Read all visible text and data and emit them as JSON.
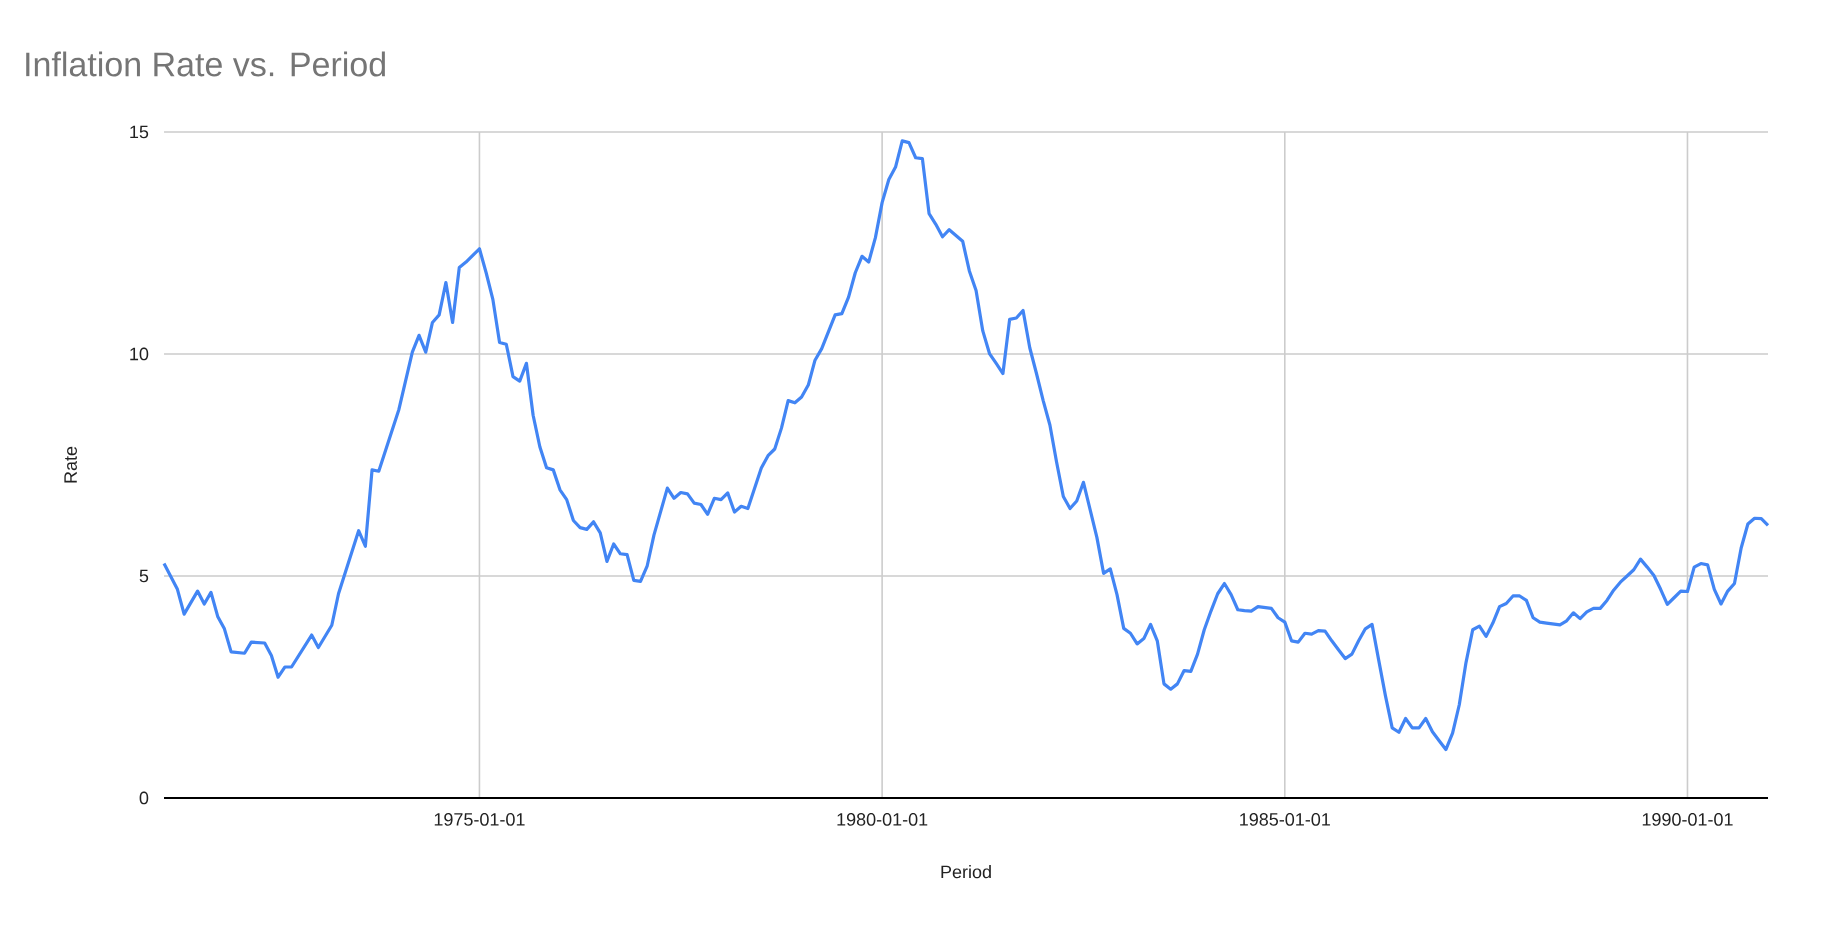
{
  "chart_data": {
    "type": "line",
    "title": "Inflation Rate vs. Period",
    "xlabel": "Period",
    "ylabel": "Rate",
    "color": "#4285f4",
    "grid": true,
    "xlim": [
      "1971-02",
      "1991-01"
    ],
    "xticks": [
      "1975-01-01",
      "1980-01-01",
      "1985-01-01",
      "1990-01-01"
    ],
    "ylim": [
      0,
      15
    ],
    "yticks": [
      0,
      5,
      10,
      15
    ],
    "x": [
      "1971-02",
      "1971-04",
      "1971-05",
      "1971-07",
      "1971-08",
      "1971-09",
      "1971-10",
      "1971-11",
      "1971-12",
      "1972-02",
      "1972-03",
      "1972-05",
      "1972-06",
      "1972-07",
      "1972-08",
      "1972-09",
      "1972-12",
      "1973-01",
      "1973-03",
      "1973-04",
      "1973-07",
      "1973-08",
      "1973-09",
      "1973-10",
      "1974-01",
      "1974-03",
      "1974-04",
      "1974-05",
      "1974-06",
      "1974-07",
      "1974-08",
      "1974-09",
      "1974-10",
      "1974-11",
      "1975-01",
      "1975-02",
      "1975-03",
      "1975-04",
      "1975-05",
      "1975-06",
      "1975-07",
      "1975-08",
      "1975-09",
      "1975-10",
      "1975-11",
      "1975-12",
      "1976-01",
      "1976-02",
      "1976-03",
      "1976-04",
      "1976-05",
      "1976-06",
      "1976-07",
      "1976-08",
      "1976-09",
      "1976-10",
      "1976-11",
      "1976-12",
      "1977-01",
      "1977-02",
      "1977-03",
      "1977-05",
      "1977-06",
      "1977-07",
      "1977-08",
      "1977-09",
      "1977-10",
      "1977-11",
      "1977-12",
      "1978-01",
      "1978-02",
      "1978-03",
      "1978-04",
      "1978-05",
      "1978-07",
      "1978-08",
      "1978-09",
      "1978-10",
      "1978-11",
      "1978-12",
      "1979-01",
      "1979-02",
      "1979-03",
      "1979-04",
      "1979-06",
      "1979-07",
      "1979-08",
      "1979-09",
      "1979-10",
      "1979-11",
      "1979-12",
      "1980-01",
      "1980-02",
      "1980-03",
      "1980-04",
      "1980-05",
      "1980-06",
      "1980-07",
      "1980-08",
      "1980-09",
      "1980-10",
      "1980-11",
      "1980-12",
      "1981-01",
      "1981-02",
      "1981-03",
      "1981-04",
      "1981-05",
      "1981-06",
      "1981-07",
      "1981-08",
      "1981-09",
      "1981-10",
      "1981-11",
      "1981-12",
      "1982-01",
      "1982-02",
      "1982-03",
      "1982-04",
      "1982-05",
      "1982-06",
      "1982-07",
      "1982-08",
      "1982-09",
      "1982-10",
      "1982-11",
      "1982-12",
      "1983-01",
      "1983-02",
      "1983-03",
      "1983-04",
      "1983-05",
      "1983-06",
      "1983-07",
      "1983-08",
      "1983-09",
      "1983-10",
      "1983-11",
      "1983-12",
      "1984-01",
      "1984-02",
      "1984-03",
      "1984-04",
      "1984-05",
      "1984-06",
      "1984-07",
      "1984-08",
      "1984-09",
      "1984-10",
      "1984-11",
      "1984-12",
      "1985-01",
      "1985-02",
      "1985-03",
      "1985-04",
      "1985-05",
      "1985-06",
      "1985-07",
      "1985-08",
      "1985-09",
      "1985-10",
      "1985-11",
      "1985-12",
      "1986-01",
      "1986-02",
      "1986-03",
      "1986-04",
      "1986-05",
      "1986-06",
      "1986-07",
      "1986-08",
      "1986-09",
      "1986-10",
      "1986-11",
      "1986-12",
      "1987-01",
      "1987-02",
      "1987-03",
      "1987-04",
      "1987-05",
      "1987-06",
      "1987-07",
      "1987-08",
      "1987-09",
      "1987-10",
      "1987-11",
      "1987-12",
      "1988-01",
      "1988-02",
      "1988-03",
      "1988-04",
      "1988-05",
      "1988-06",
      "1988-07",
      "1988-08",
      "1988-09",
      "1988-10",
      "1988-11",
      "1988-12",
      "1989-01",
      "1989-02",
      "1989-03",
      "1989-04",
      "1989-05",
      "1989-06",
      "1989-07",
      "1989-08",
      "1989-09",
      "1989-10",
      "1989-11",
      "1989-12",
      "1990-01",
      "1990-02",
      "1990-03",
      "1990-04",
      "1990-05",
      "1990-06",
      "1990-07",
      "1990-08",
      "1990-09",
      "1990-10",
      "1990-11",
      "1990-12",
      "1991-01"
    ],
    "values": [
      5.28,
      4.7,
      4.14,
      4.66,
      4.37,
      4.63,
      4.09,
      3.81,
      3.29,
      3.26,
      3.51,
      3.49,
      3.21,
      2.72,
      2.95,
      2.95,
      3.67,
      3.39,
      3.89,
      4.6,
      6.02,
      5.67,
      7.39,
      7.36,
      8.75,
      10.04,
      10.42,
      10.04,
      10.71,
      10.88,
      11.61,
      10.71,
      11.95,
      12.07,
      12.37,
      11.83,
      11.23,
      10.26,
      10.22,
      9.49,
      9.39,
      9.79,
      8.62,
      7.91,
      7.44,
      7.39,
      6.94,
      6.72,
      6.25,
      6.09,
      6.05,
      6.22,
      5.97,
      5.33,
      5.72,
      5.5,
      5.48,
      4.9,
      4.88,
      5.23,
      5.92,
      6.98,
      6.75,
      6.88,
      6.85,
      6.64,
      6.61,
      6.39,
      6.75,
      6.72,
      6.87,
      6.44,
      6.57,
      6.52,
      7.43,
      7.71,
      7.86,
      8.33,
      8.95,
      8.9,
      9.03,
      9.3,
      9.86,
      10.12,
      10.88,
      10.91,
      11.28,
      11.83,
      12.2,
      12.07,
      12.62,
      13.41,
      13.93,
      14.21,
      14.8,
      14.76,
      14.42,
      14.4,
      13.16,
      12.92,
      12.64,
      12.8,
      12.67,
      12.54,
      11.87,
      11.43,
      10.52,
      10.01,
      9.79,
      9.56,
      10.78,
      10.81,
      10.98,
      10.14,
      9.56,
      8.95,
      8.4,
      7.56,
      6.79,
      6.52,
      6.69,
      7.11,
      6.49,
      5.87,
      5.06,
      5.16,
      4.58,
      3.82,
      3.71,
      3.47,
      3.59,
      3.91,
      3.54,
      2.57,
      2.45,
      2.57,
      2.87,
      2.85,
      3.24,
      3.79,
      4.21,
      4.6,
      4.83,
      4.58,
      4.24,
      4.22,
      4.21,
      4.31,
      4.29,
      4.27,
      4.06,
      3.96,
      3.54,
      3.51,
      3.71,
      3.69,
      3.77,
      3.76,
      3.54,
      3.34,
      3.14,
      3.24,
      3.54,
      3.81,
      3.91,
      3.1,
      2.3,
      1.58,
      1.48,
      1.79,
      1.58,
      1.58,
      1.79,
      1.49,
      1.29,
      1.09,
      1.46,
      2.1,
      3.05,
      3.79,
      3.87,
      3.64,
      3.94,
      4.31,
      4.38,
      4.55,
      4.55,
      4.45,
      4.06,
      3.96,
      3.94,
      3.92,
      3.9,
      3.99,
      4.17,
      4.04,
      4.19,
      4.27,
      4.27,
      4.45,
      4.68,
      4.86,
      5.0,
      5.14,
      5.38,
      5.2,
      5.01,
      4.7,
      4.36,
      4.51,
      4.66,
      4.65,
      5.2,
      5.28,
      5.25,
      4.7,
      4.37,
      4.66,
      4.83,
      5.63,
      6.17,
      6.3,
      6.29,
      6.14
    ]
  }
}
